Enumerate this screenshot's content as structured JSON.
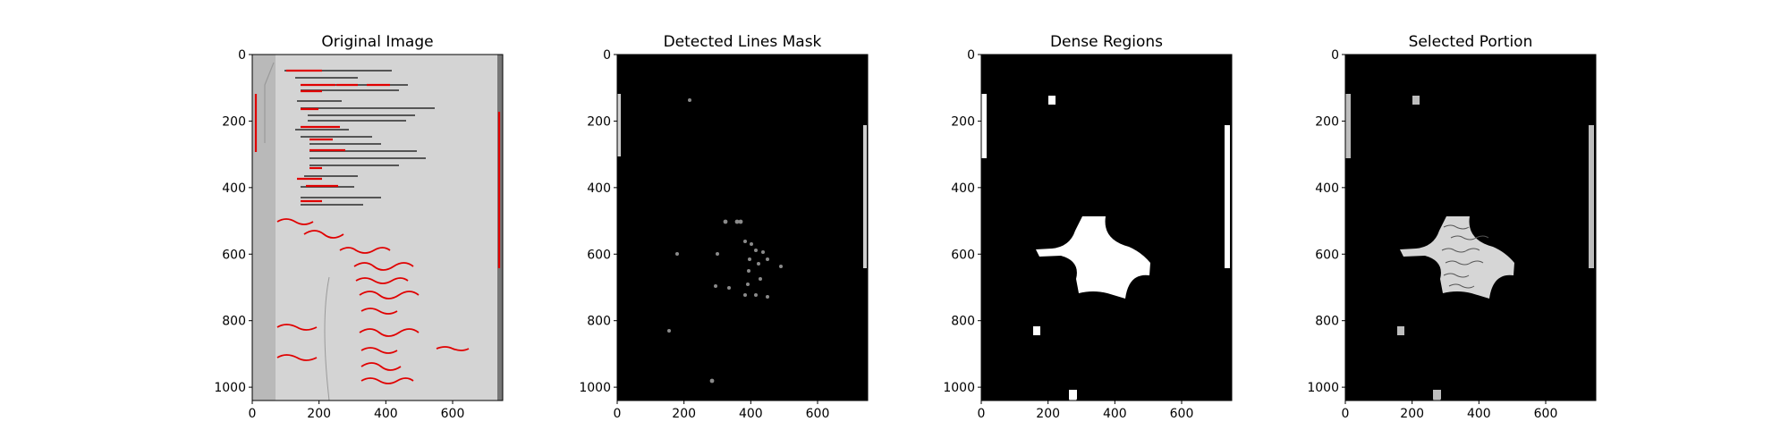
{
  "chart_data": [
    {
      "type": "image",
      "title": "Original Image",
      "xlim": [
        0,
        750
      ],
      "ylim": [
        1040,
        0
      ],
      "xticks": [
        0,
        200,
        400,
        600
      ],
      "yticks": [
        0,
        200,
        400,
        600,
        800,
        1000
      ],
      "background": "#d4d4d4"
    },
    {
      "type": "image",
      "title": "Detected Lines Mask",
      "xlim": [
        0,
        750
      ],
      "ylim": [
        1040,
        0
      ],
      "xticks": [
        0,
        200,
        400,
        600
      ],
      "yticks": [
        0,
        200,
        400,
        600,
        800,
        1000
      ],
      "background": "#000000"
    },
    {
      "type": "image",
      "title": "Dense Regions",
      "xlim": [
        0,
        750
      ],
      "ylim": [
        1040,
        0
      ],
      "xticks": [
        0,
        200,
        400,
        600
      ],
      "yticks": [
        0,
        200,
        400,
        600,
        800,
        1000
      ],
      "background": "#000000"
    },
    {
      "type": "image",
      "title": "Selected Portion",
      "xlim": [
        0,
        750
      ],
      "ylim": [
        1040,
        0
      ],
      "xticks": [
        0,
        200,
        400,
        600
      ],
      "yticks": [
        0,
        200,
        400,
        600,
        800,
        1000
      ],
      "background": "#000000"
    }
  ]
}
